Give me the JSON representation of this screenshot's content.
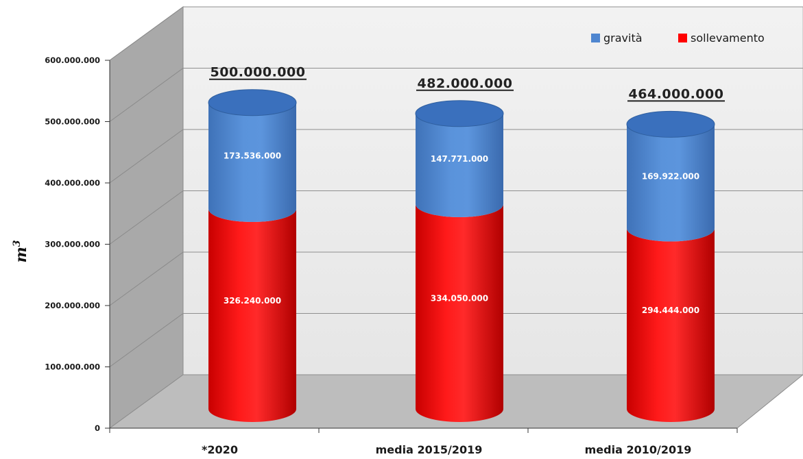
{
  "chart_data": {
    "type": "bar",
    "stacked": true,
    "three_d": true,
    "categories": [
      "*2020",
      "media 2015/2019",
      "media 2010/2019"
    ],
    "series": [
      {
        "name": "sollevamento",
        "color": "#ff0000",
        "values": [
          326240000,
          334050000,
          294444000
        ],
        "labels": [
          "326.240.000",
          "334.050.000",
          "294.444.000"
        ]
      },
      {
        "name": "gravità",
        "color": "#4f86d0",
        "values": [
          173536000,
          147771000,
          169922000
        ],
        "labels": [
          "173.536.000",
          "147.771.000",
          "169.922.000"
        ]
      }
    ],
    "totals": [
      500000000,
      482000000,
      464000000
    ],
    "total_labels": [
      "500.000.000",
      "482.000.000",
      "464.000.000"
    ],
    "ylabel": "m",
    "ylabel_superscript": "3",
    "ylim": [
      0,
      600000000
    ],
    "yticks": [
      0,
      100000000,
      200000000,
      300000000,
      400000000,
      500000000,
      600000000
    ],
    "ytick_labels": [
      "0",
      "100.000.000",
      "200.000.000",
      "300.000.000",
      "400.000.000",
      "500.000.000",
      "600.000.000"
    ],
    "grid": true,
    "legend_position": "top-right",
    "legend_order": [
      "gravità",
      "sollevamento"
    ]
  }
}
